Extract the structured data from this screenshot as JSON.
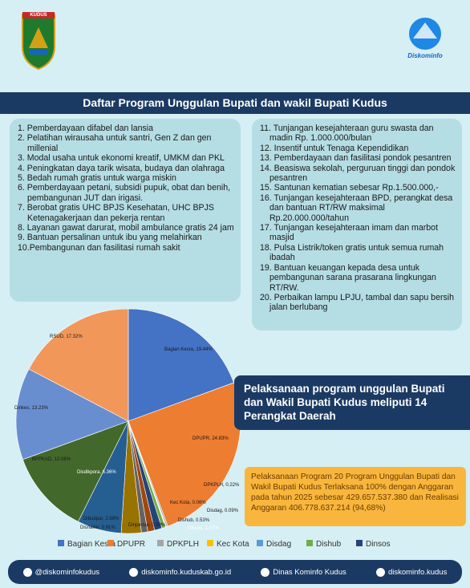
{
  "header": {
    "logo_text": "KUDUS",
    "brand": "Diskominfo"
  },
  "banner": {
    "title": "Daftar Program Unggulan Bupati dan wakil Bupati Kudus"
  },
  "list_left": [
    "1.  Pemberdayaan difabel dan lansia",
    "2. Pelatihan wirausaha untuk santri, Gen Z dan gen millenial",
    "3. Modal usaha untuk ekonomi kreatif, UMKM dan PKL",
    "4. Peningkatan daya tarik wisata, budaya dan olahraga",
    "5. Bedah rumah gratis untuk warga miskin",
    "6. Pemberdayaan petani, subsidi pupuk, obat dan benih, pembangunan JUT dan irigasi.",
    "7. Berobat gratis UHC BPJS Kesehatan, UHC BPJS Ketenagakerjaan dan pekerja rentan",
    "8. Layanan gawat darurat, mobil ambulance gratis 24 jam",
    "9. Bantuan persalinan untuk ibu yang melahirkan",
    "10.Pembangunan dan fasilitasi rumah sakit"
  ],
  "list_right": [
    "11. Tunjangan kesejahteraan guru swasta dan madin Rp. 1.000.000/bulan",
    "12. Insentif untuk Tenaga Kependidikan",
    "13. Pemberdayaan dan fasilitasi pondok pesantren",
    "14. Beasiswa sekolah, perguruan tinggi dan pondok pesantren",
    "15. Santunan kematian sebesar Rp.1.500.000,-",
    "16. Tunjangan kesejahteraan BPD, perangkat desa dan bantuan RT/RW maksimal Rp.20.000.000/tahun",
    "17. Tunjangan kesejahteraan imam dan marbot masjid",
    "18. Pulsa Listrik/token gratis untuk semua rumah ibadah",
    "19. Bantuan keuangan kepada desa untuk pembangunan sarana prasarana lingkungan RT/RW.",
    "20. Perbaikan lampu LPJU, tambal dan sapu bersih jalan berlubang"
  ],
  "chart_data": {
    "type": "pie",
    "categories": [
      "Bagian Kesra",
      "DPUPR",
      "DPKPLH",
      "Kec Kota",
      "Disdag",
      "Dishub",
      "Dinsos",
      "Dinpertan",
      "Disnaker",
      "Dibudpar",
      "Disdikpora",
      "BPPKAD",
      "Dinkes",
      "RSUD"
    ],
    "values": [
      19.44,
      24.83,
      0.22,
      0.06,
      0.09,
      0.53,
      1.07,
      0.99,
      0.91,
      2.88,
      6.36,
      12.08,
      13.23,
      17.32
    ],
    "value_labels": [
      "Bagian Kesra, 19.44%",
      "DPUPR, 24.83%",
      "DPKPLH, 0.22%",
      "Kec Kota, 0.06%",
      "Disdag, 0.09%",
      "Dishub, 0.53%",
      "Dinsos, 1.07%",
      "Dinpertan, 0.99%",
      "Disnaker, 0.91%",
      "Dibudpar, 2.88%",
      "Disdikpora, 6.36%",
      "BPPKAD, 12.08%",
      "Dinkes, 13.23%",
      "RSUD, 17.32%"
    ],
    "colors": [
      "#4472c4",
      "#ed7d31",
      "#a5a5a5",
      "#ffc000",
      "#5b9bd5",
      "#70ad47",
      "#264478",
      "#9e480e",
      "#636363",
      "#997300",
      "#255e91",
      "#43682b",
      "#698ed0",
      "#f1975a"
    ],
    "legend": [
      "Bagian Kesra",
      "DPUPR",
      "DPKPLH",
      "Kec Kota",
      "Disdag",
      "Dishub",
      "Dinsos"
    ]
  },
  "highlight": "Pelaksanaan program unggulan Bupati dan Wakil Bupati Kudus meliputi 14 Perangkat Daerah",
  "summary": "Pelaksanaan Program 20 Program Unggulan Bupati dan Wakil Bupati Kudus Terlaksana 100% dengan Anggaran pada tahun 2025 sebesar 429.657.537.380 dan Realisasi Anggaran 406.778.637.214 (94,68%)",
  "footer": [
    "@diskominfokudus",
    "diskominfo.kuduskab.go.id",
    "Dinas Kominfo Kudus",
    "diskominfo.kudus"
  ]
}
